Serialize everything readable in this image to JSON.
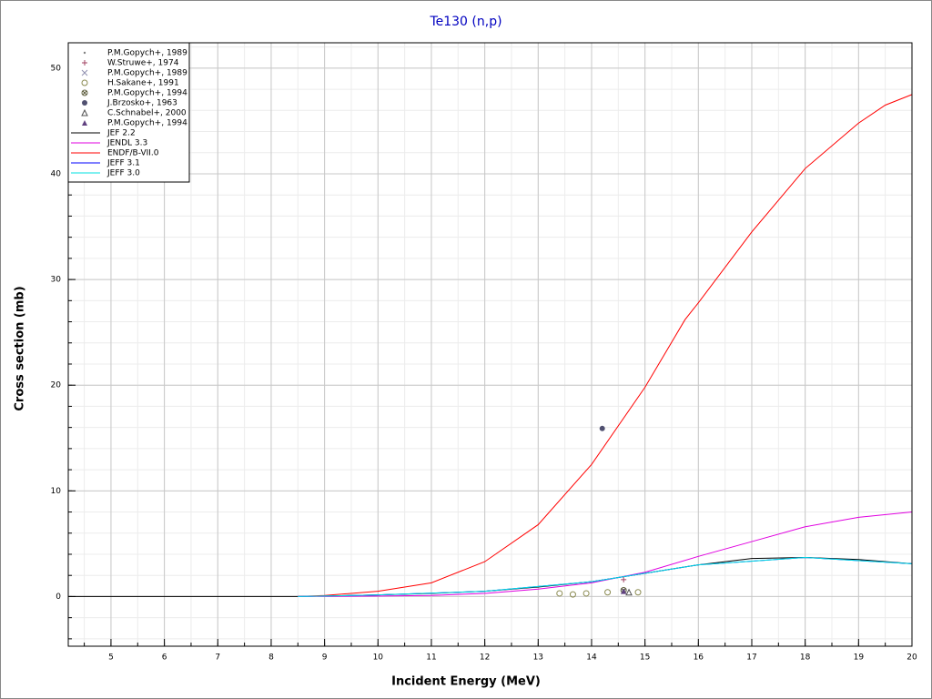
{
  "chart_data": {
    "type": "line",
    "title": "Te130 (n,p)",
    "x_label": "Incident Energy (MeV)",
    "y_label": "Cross section (mb)",
    "xlim": [
      4.2,
      20
    ],
    "ylim": [
      -4.7,
      52.4
    ],
    "xticks": [
      5,
      6,
      7,
      8,
      9,
      10,
      11,
      12,
      13,
      14,
      15,
      16,
      17,
      18,
      19,
      20
    ],
    "yticks": [
      0,
      10,
      20,
      30,
      40,
      50
    ],
    "xminor": 2,
    "yminor": 5,
    "grid": true,
    "legend": "upper left",
    "series": [
      {
        "name": "P.M.Gopych+, 1989",
        "color": "#808080",
        "marker": "dot",
        "x": [
          14.6
        ],
        "values": [
          0.5
        ]
      },
      {
        "name": "W.Struwe+, 1974",
        "color": "#a04060",
        "marker": "plus",
        "x": [
          14.6
        ],
        "values": [
          1.6
        ]
      },
      {
        "name": "P.M.Gopych+, 1989",
        "color": "#9090b0",
        "marker": "cross",
        "x": [
          14.6
        ],
        "values": [
          0.5
        ]
      },
      {
        "name": "H.Sakane+, 1991",
        "color": "#8a8a50",
        "marker": "circle",
        "x": [
          13.4,
          13.65,
          13.9,
          14.3,
          14.87
        ],
        "values": [
          0.3,
          0.2,
          0.3,
          0.4,
          0.4
        ]
      },
      {
        "name": "P.M.Gopych+, 1994",
        "color": "#606040",
        "marker": "circle-x",
        "x": [
          14.6
        ],
        "values": [
          0.6
        ]
      },
      {
        "name": "J.Brzosko+, 1963",
        "color": "#505070",
        "marker": "filled-circle",
        "x": [
          14.2
        ],
        "values": [
          15.9
        ]
      },
      {
        "name": "C.Schnabel+, 2000",
        "color": "#505050",
        "marker": "triangle",
        "x": [
          14.7
        ],
        "values": [
          0.4
        ]
      },
      {
        "name": "P.M.Gopych+, 1994",
        "color": "#604080",
        "marker": "filled-triangle",
        "x": [
          14.6
        ],
        "values": [
          0.5
        ]
      },
      {
        "name": "JEF 2.2",
        "color": "#000000",
        "x": [
          4.2,
          8.5,
          10,
          11,
          12,
          13,
          14,
          15,
          16,
          17,
          18,
          19,
          20
        ],
        "values": [
          0,
          0,
          0.15,
          0.3,
          0.5,
          0.9,
          1.4,
          2.2,
          3.0,
          3.6,
          3.7,
          3.5,
          3.1
        ]
      },
      {
        "name": "JENDL 3.3",
        "color": "#e000e0",
        "x": [
          8.5,
          10,
          11,
          12,
          13,
          14,
          15,
          16,
          17,
          18,
          19,
          20
        ],
        "values": [
          0,
          0.05,
          0.1,
          0.3,
          0.7,
          1.3,
          2.3,
          3.8,
          5.2,
          6.6,
          7.5,
          8.0
        ]
      },
      {
        "name": "ENDF/B-VII.0",
        "color": "#ff0000",
        "x": [
          8.5,
          9,
          10,
          11,
          12,
          13,
          14,
          15,
          15.75,
          16,
          17,
          18,
          19,
          19.5,
          20
        ],
        "values": [
          0,
          0.1,
          0.5,
          1.3,
          3.3,
          6.8,
          12.5,
          19.8,
          26.2,
          27.8,
          34.5,
          40.5,
          44.8,
          46.5,
          47.5
        ]
      },
      {
        "name": "JEFF 3.1",
        "color": "#0000ff",
        "x": [
          8.5,
          10,
          12,
          14,
          16,
          18,
          20
        ],
        "values": [
          0,
          0.15,
          0.5,
          1.4,
          3.0,
          3.7,
          3.1
        ]
      },
      {
        "name": "JEFF 3.0",
        "color": "#00e0e0",
        "x": [
          8.5,
          10,
          12,
          14,
          16,
          18,
          20
        ],
        "values": [
          0,
          0.15,
          0.5,
          1.4,
          3.0,
          3.7,
          3.1
        ]
      }
    ]
  }
}
